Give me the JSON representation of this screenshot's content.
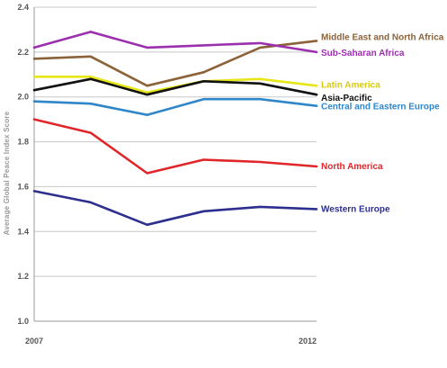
{
  "chart_data": {
    "type": "line",
    "title": "",
    "xlabel": "",
    "ylabel": "Average Global Peace Index Score",
    "x": [
      2007,
      2008,
      2009,
      2010,
      2011,
      2012
    ],
    "x_tick_labels": [
      "2007",
      "2012"
    ],
    "ylim": [
      1.0,
      2.4
    ],
    "y_ticks": [
      "1.0",
      "1.2",
      "1.4",
      "1.6",
      "1.8",
      "2.0",
      "2.2",
      "2.4"
    ],
    "grid": true,
    "legend": "direct labels at right end of lines",
    "series": [
      {
        "name": "Middle East and North Africa",
        "color": "#8c6239",
        "label_color": "#8c6239",
        "values": [
          2.17,
          2.18,
          2.05,
          2.11,
          2.22,
          2.25
        ]
      },
      {
        "name": "Sub-Saharan Africa",
        "color": "#9b2fae",
        "label_color": "#9b2fae",
        "values": [
          2.22,
          2.29,
          2.22,
          2.23,
          2.24,
          2.2
        ]
      },
      {
        "name": "Latin America",
        "color": "#e6e619",
        "label_color": "#d8cc10",
        "values": [
          2.09,
          2.09,
          2.02,
          2.07,
          2.08,
          2.05
        ]
      },
      {
        "name": "Asia-Pacific",
        "color": "#111111",
        "label_color": "#111111",
        "values": [
          2.03,
          2.08,
          2.01,
          2.07,
          2.06,
          2.01
        ]
      },
      {
        "name": "Central and Eastern Europe",
        "color": "#2f86c9",
        "label_color": "#2f86c9",
        "values": [
          1.98,
          1.97,
          1.92,
          1.99,
          1.99,
          1.96
        ]
      },
      {
        "name": "North America",
        "color": "#e0262b",
        "label_color": "#e0262b",
        "values": [
          1.9,
          1.84,
          1.66,
          1.72,
          1.71,
          1.69
        ]
      },
      {
        "name": "Western Europe",
        "color": "#2d2f8e",
        "label_color": "#2d2f8e",
        "values": [
          1.58,
          1.53,
          1.43,
          1.49,
          1.51,
          1.5
        ]
      }
    ]
  }
}
